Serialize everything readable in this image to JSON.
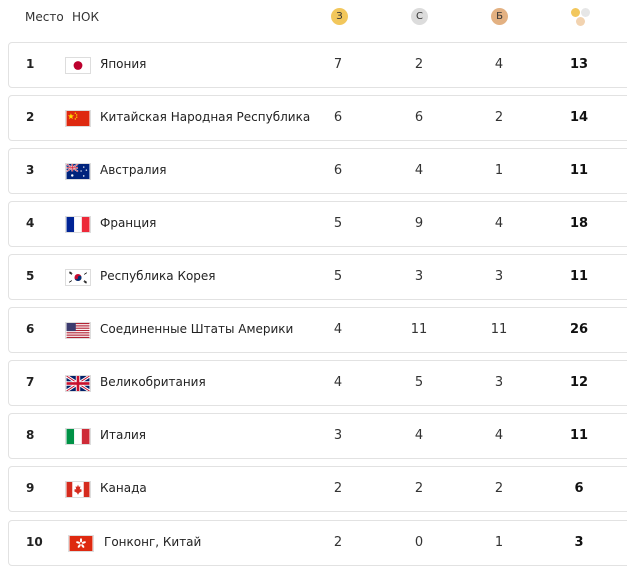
{
  "header": {
    "rank_label": "Место",
    "noc_label": "НОК",
    "gold_label": "З",
    "silver_label": "С",
    "bronze_label": "Б",
    "total_icon": "medals-total-icon"
  },
  "colors": {
    "gold": "#f2c75c",
    "silver": "#dcdcdc",
    "bronze": "#e3b182",
    "row_border": "#e2e2e2"
  },
  "rows": [
    {
      "rank": "1",
      "country": "Япония",
      "flag": "japan-flag-icon",
      "gold": "7",
      "silver": "2",
      "bronze": "4",
      "total": "13"
    },
    {
      "rank": "2",
      "country": "Китайская Народная Республика",
      "flag": "china-flag-icon",
      "gold": "6",
      "silver": "6",
      "bronze": "2",
      "total": "14"
    },
    {
      "rank": "3",
      "country": "Австралия",
      "flag": "australia-flag-icon",
      "gold": "6",
      "silver": "4",
      "bronze": "1",
      "total": "11"
    },
    {
      "rank": "4",
      "country": "Франция",
      "flag": "france-flag-icon",
      "gold": "5",
      "silver": "9",
      "bronze": "4",
      "total": "18"
    },
    {
      "rank": "5",
      "country": "Республика Корея",
      "flag": "korea-flag-icon",
      "gold": "5",
      "silver": "3",
      "bronze": "3",
      "total": "11"
    },
    {
      "rank": "6",
      "country": "Соединенные Штаты Америки",
      "flag": "usa-flag-icon",
      "gold": "4",
      "silver": "11",
      "bronze": "11",
      "total": "26"
    },
    {
      "rank": "7",
      "country": "Великобритания",
      "flag": "uk-flag-icon",
      "gold": "4",
      "silver": "5",
      "bronze": "3",
      "total": "12"
    },
    {
      "rank": "8",
      "country": "Италия",
      "flag": "italy-flag-icon",
      "gold": "3",
      "silver": "4",
      "bronze": "4",
      "total": "11"
    },
    {
      "rank": "9",
      "country": "Канада",
      "flag": "canada-flag-icon",
      "gold": "2",
      "silver": "2",
      "bronze": "2",
      "total": "6"
    },
    {
      "rank": "10",
      "country": "Гонконг, Китай",
      "flag": "hong-kong-flag-icon",
      "gold": "2",
      "silver": "0",
      "bronze": "1",
      "total": "3"
    }
  ]
}
